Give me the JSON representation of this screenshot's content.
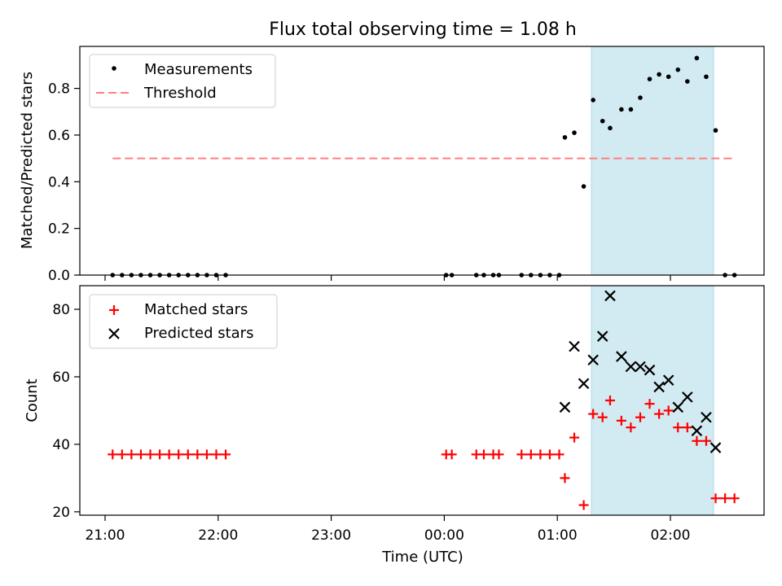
{
  "figure": {
    "title": "Flux total observing time = 1.08 h",
    "xlabel": "Time (UTC)",
    "x_ticks": [
      "21:00",
      "22:00",
      "23:00",
      "00:00",
      "01:00",
      "02:00"
    ],
    "window": {
      "start": "01:19",
      "end": "02:24",
      "color": "#add8e6"
    }
  },
  "colors": {
    "measurements": "#000000",
    "threshold": "#ff7f7f",
    "matched": "#ff0000",
    "predicted": "#000000",
    "window": "#add8e6"
  },
  "chart_data": [
    {
      "type": "scatter",
      "ylabel": "Matched/Predicted stars",
      "ylim": [
        0,
        0.98
      ],
      "y_ticks": [
        "0.0",
        "0.2",
        "0.4",
        "0.6",
        "0.8"
      ],
      "legend": {
        "placement": "upper-left",
        "entries": [
          "Measurements",
          "Threshold"
        ]
      },
      "series": [
        {
          "name": "Measurements",
          "marker": "dot",
          "x": [
            "21:04",
            "21:09",
            "21:14",
            "21:19",
            "21:24",
            "21:29",
            "21:34",
            "21:39",
            "21:44",
            "21:49",
            "21:54",
            "21:59",
            "22:04",
            "00:01",
            "00:04",
            "00:17",
            "00:21",
            "00:26",
            "00:29",
            "00:41",
            "00:46",
            "00:51",
            "00:56",
            "01:01",
            "01:04",
            "01:09",
            "01:14",
            "01:19",
            "01:24",
            "01:28",
            "01:34",
            "01:39",
            "01:44",
            "01:49",
            "01:54",
            "01:59",
            "02:04",
            "02:09",
            "02:14",
            "02:19",
            "02:24",
            "02:29",
            "02:34"
          ],
          "y": [
            0,
            0,
            0,
            0,
            0,
            0,
            0,
            0,
            0,
            0,
            0,
            0,
            0,
            0,
            0,
            0,
            0,
            0,
            0,
            0,
            0,
            0,
            0,
            0,
            0.59,
            0.61,
            0.38,
            0.75,
            0.66,
            0.63,
            0.71,
            0.71,
            0.76,
            0.84,
            0.86,
            0.85,
            0.88,
            0.83,
            0.93,
            0.85,
            0.62,
            0,
            0
          ]
        },
        {
          "name": "Threshold",
          "line": "dashed",
          "x": [
            "21:04",
            "02:34"
          ],
          "y": [
            0.5,
            0.5
          ]
        }
      ]
    },
    {
      "type": "scatter",
      "ylabel": "Count",
      "ylim": [
        19,
        87
      ],
      "y_ticks": [
        "20",
        "40",
        "60",
        "80"
      ],
      "legend": {
        "placement": "upper-left",
        "entries": [
          "Matched stars",
          "Predicted stars"
        ]
      },
      "series": [
        {
          "name": "Matched stars",
          "marker": "plus",
          "x": [
            "21:04",
            "21:09",
            "21:14",
            "21:19",
            "21:24",
            "21:29",
            "21:34",
            "21:39",
            "21:44",
            "21:49",
            "21:54",
            "21:59",
            "22:04",
            "00:01",
            "00:04",
            "00:17",
            "00:21",
            "00:26",
            "00:29",
            "00:41",
            "00:46",
            "00:51",
            "00:56",
            "01:01",
            "01:04",
            "01:09",
            "01:14",
            "01:19",
            "01:24",
            "01:28",
            "01:34",
            "01:39",
            "01:44",
            "01:49",
            "01:54",
            "01:59",
            "02:04",
            "02:09",
            "02:14",
            "02:19",
            "02:24",
            "02:29",
            "02:34"
          ],
          "y": [
            37,
            37,
            37,
            37,
            37,
            37,
            37,
            37,
            37,
            37,
            37,
            37,
            37,
            37,
            37,
            37,
            37,
            37,
            37,
            37,
            37,
            37,
            37,
            37,
            30,
            42,
            22,
            49,
            48,
            53,
            47,
            45,
            48,
            52,
            49,
            50,
            45,
            45,
            41,
            41,
            24,
            24,
            24
          ]
        },
        {
          "name": "Predicted stars",
          "marker": "x",
          "x": [
            "01:04",
            "01:09",
            "01:14",
            "01:19",
            "01:24",
            "01:28",
            "01:34",
            "01:39",
            "01:44",
            "01:49",
            "01:54",
            "01:59",
            "02:04",
            "02:09",
            "02:14",
            "02:19",
            "02:24"
          ],
          "y": [
            51,
            69,
            58,
            65,
            72,
            84,
            66,
            63,
            63,
            62,
            57,
            59,
            51,
            54,
            44,
            48,
            39
          ]
        }
      ]
    }
  ]
}
